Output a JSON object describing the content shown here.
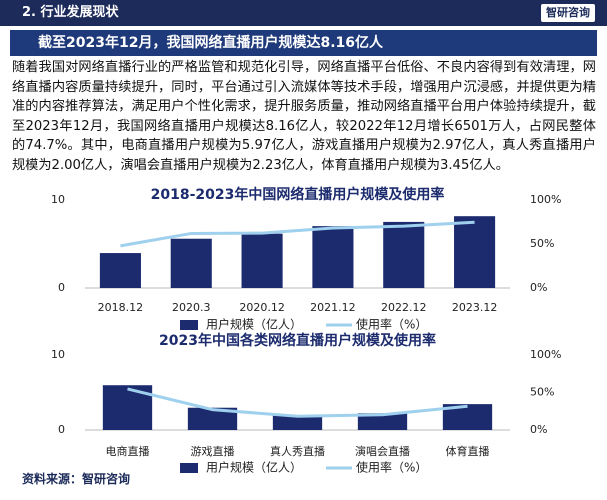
{
  "header": {
    "section": "2. 行业发展现状",
    "logo": "智研咨询"
  },
  "headline": "截至2023年12月，我国网络直播用户规模达8.16亿人",
  "paragraph": "随着我国对网络直播行业的严格监管和规范化引导，网络直播平台低俗、不良内容得到有效清理，网络直播内容质量持续提升，同时，平台通过引入流媒体等技术手段，增强用户沉浸感，并提供更为精准的内容推荐算法，满足用户个性化需求，提升服务质量，推动网络直播平台用户体验持续提升，截至2023年12月，我国网络直播用户规模达8.16亿人，较2022年12月增长6501万人，占网民整体的74.7%。其中，电商直播用户规模为5.97亿人，游戏直播用户规模为2.97亿人，真人秀直播用户规模为2.00亿人，演唱会直播用户规模为2.23亿人，体育直播用户规模为3.45亿人。",
  "source": "资料来源：智研咨询",
  "chart_data": [
    {
      "type": "bar-line",
      "title": "2018-2023年中国网络直播用户规模及使用率",
      "categories": [
        "2018.12",
        "2020.3",
        "2020.12",
        "2021.12",
        "2022.12",
        "2023.12"
      ],
      "series": [
        {
          "name": "用户规模（亿人）",
          "type": "bar",
          "color": "#1c2b6e",
          "values": [
            3.97,
            5.6,
            6.17,
            7.03,
            7.51,
            8.16
          ]
        },
        {
          "name": "使用率（%）",
          "type": "line",
          "axis": "y2",
          "color": "#9fd0ee",
          "values": [
            47.9,
            62.0,
            62.4,
            68.2,
            70.3,
            74.7
          ]
        }
      ],
      "ylim": [
        0,
        10
      ],
      "yticks": [
        0,
        10
      ],
      "y2lim": [
        0,
        100
      ],
      "y2ticks": [
        {
          "value": 0,
          "label": "0%"
        },
        {
          "value": 50,
          "label": "50%"
        },
        {
          "value": 100,
          "label": "100%"
        }
      ]
    },
    {
      "type": "bar-line",
      "title": "2023年中国各类网络直播用户规模及使用率",
      "categories": [
        "电商直播",
        "游戏直播",
        "真人秀直播",
        "演唱会直播",
        "体育直播"
      ],
      "series": [
        {
          "name": "用户规模（亿人）",
          "type": "bar",
          "color": "#1c2b6e",
          "values": [
            5.97,
            2.97,
            2.0,
            2.23,
            3.45
          ]
        },
        {
          "name": "使用率（%）",
          "type": "line",
          "axis": "y2",
          "color": "#9fd0ee",
          "values": [
            54.7,
            27.2,
            18.3,
            20.4,
            31.6
          ]
        }
      ],
      "ylim": [
        0,
        10
      ],
      "yticks": [
        0,
        10
      ],
      "y2lim": [
        0,
        100
      ],
      "y2ticks": [
        {
          "value": 0,
          "label": "0%"
        },
        {
          "value": 50,
          "label": "50%"
        },
        {
          "value": 100,
          "label": "100%"
        }
      ]
    }
  ]
}
